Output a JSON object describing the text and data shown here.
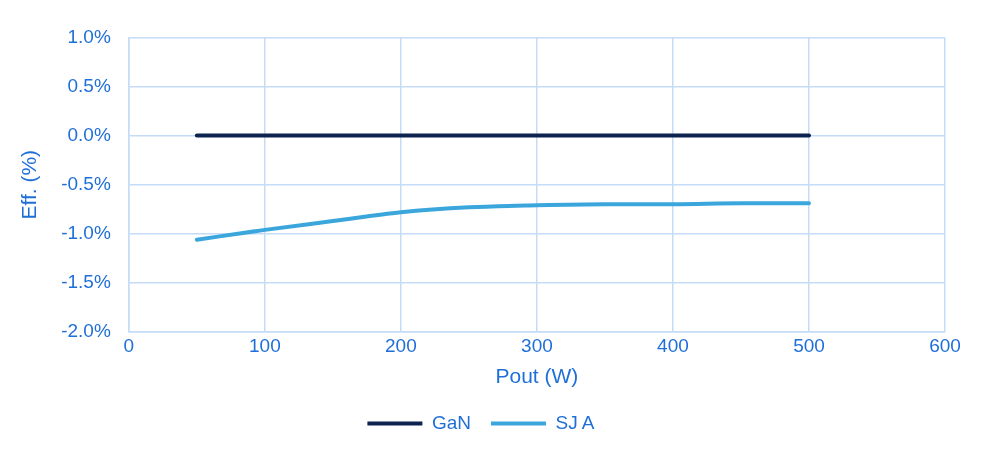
{
  "chart_data": {
    "type": "line",
    "xlabel": "Pout (W)",
    "ylabel": "Eff. (%)",
    "x": [
      50,
      100,
      150,
      200,
      250,
      300,
      350,
      400,
      450,
      500
    ],
    "series": [
      {
        "name": "GaN",
        "color": "#0c2350",
        "values": [
          0,
          0,
          0,
          0,
          0,
          0,
          0,
          0,
          0,
          0
        ]
      },
      {
        "name": "SJ A",
        "color": "#3aa6dc",
        "values": [
          -1.06,
          -0.96,
          -0.87,
          -0.78,
          -0.73,
          -0.71,
          -0.7,
          -0.7,
          -0.69,
          -0.69
        ]
      }
    ],
    "xlim": [
      0,
      600
    ],
    "xticks": [
      0,
      100,
      200,
      300,
      400,
      500,
      600
    ],
    "ylim": [
      -2,
      1
    ],
    "yticks": [
      {
        "value": -2,
        "label": "-2.0%"
      },
      {
        "value": -1.5,
        "label": "-1.5%"
      },
      {
        "value": -1,
        "label": "-1.0%"
      },
      {
        "value": -0.5,
        "label": "-0.5%"
      },
      {
        "value": 0,
        "label": "0.0%"
      },
      {
        "value": 0.5,
        "label": "0.5%"
      },
      {
        "value": 1,
        "label": "1.0%"
      }
    ],
    "grid": true,
    "legend": "bottom",
    "marker": "none",
    "line_style": "solid"
  }
}
